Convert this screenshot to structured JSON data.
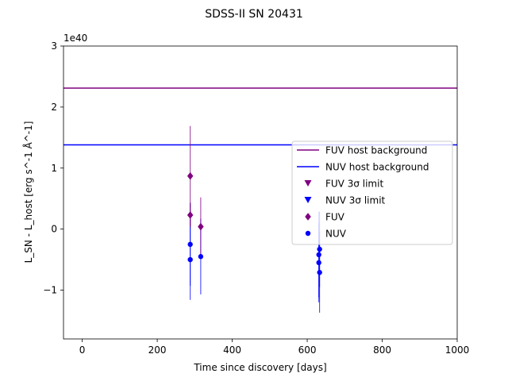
{
  "chart_data": {
    "type": "scatter",
    "title": "SDSS-II SN 20431",
    "xlabel": "Time since discovery [days]",
    "ylabel": "L_SN - L_host [erg s^-1 Å^-1]",
    "y_offset_label": "1e40",
    "xlim": [
      -50,
      1000
    ],
    "ylim": [
      -1.8,
      3.0
    ],
    "xticks": [
      0,
      200,
      400,
      600,
      800,
      1000
    ],
    "yticks": [
      -1,
      0,
      1,
      2,
      3
    ],
    "xtick_labels": [
      "0",
      "200",
      "400",
      "600",
      "800",
      "1000"
    ],
    "ytick_labels": [
      "−1",
      "0",
      "1",
      "2",
      "3"
    ],
    "grid": false,
    "legend_position": "center-right",
    "colors": {
      "fuv": "#800080",
      "nuv": "#0000ff"
    },
    "hlines": [
      {
        "name": "FUV host background",
        "y": 2.31,
        "color": "#800080"
      },
      {
        "name": "NUV host background",
        "y": 1.38,
        "color": "#0000ff"
      }
    ],
    "series": [
      {
        "name": "FUV",
        "marker": "diamond",
        "color": "#800080",
        "points": [
          {
            "x": 288,
            "y": 0.87,
            "err": 0.82
          },
          {
            "x": 288,
            "y": 0.23,
            "err": 0.2
          },
          {
            "x": 316,
            "y": 0.04,
            "err": 0.48
          }
        ]
      },
      {
        "name": "NUV",
        "marker": "circle",
        "color": "#0000ff",
        "points": [
          {
            "x": 288,
            "y": -0.25,
            "err": 0.68
          },
          {
            "x": 288,
            "y": -0.5,
            "err": 0.66
          },
          {
            "x": 316,
            "y": -0.45,
            "err": 0.62
          },
          {
            "x": 633,
            "y": -0.33,
            "err": 0.62
          },
          {
            "x": 631,
            "y": -0.42,
            "err": 0.7
          },
          {
            "x": 631,
            "y": -0.55,
            "err": 0.65
          },
          {
            "x": 633,
            "y": -0.71,
            "err": 0.66
          }
        ]
      }
    ],
    "limits": [
      {
        "name": "FUV 3σ limit",
        "marker": "triangle-down",
        "color": "#800080",
        "points": []
      },
      {
        "name": "NUV 3σ limit",
        "marker": "triangle-down",
        "color": "#0000ff",
        "points": []
      }
    ],
    "legend": [
      {
        "label": "FUV host background",
        "kind": "line",
        "color": "#800080"
      },
      {
        "label": "NUV host background",
        "kind": "line",
        "color": "#0000ff"
      },
      {
        "label": "FUV 3σ limit",
        "kind": "triangle-down",
        "color": "#800080"
      },
      {
        "label": "NUV 3σ limit",
        "kind": "triangle-down",
        "color": "#0000ff"
      },
      {
        "label": "FUV",
        "kind": "diamond",
        "color": "#800080"
      },
      {
        "label": "NUV",
        "kind": "circle",
        "color": "#0000ff"
      }
    ]
  }
}
